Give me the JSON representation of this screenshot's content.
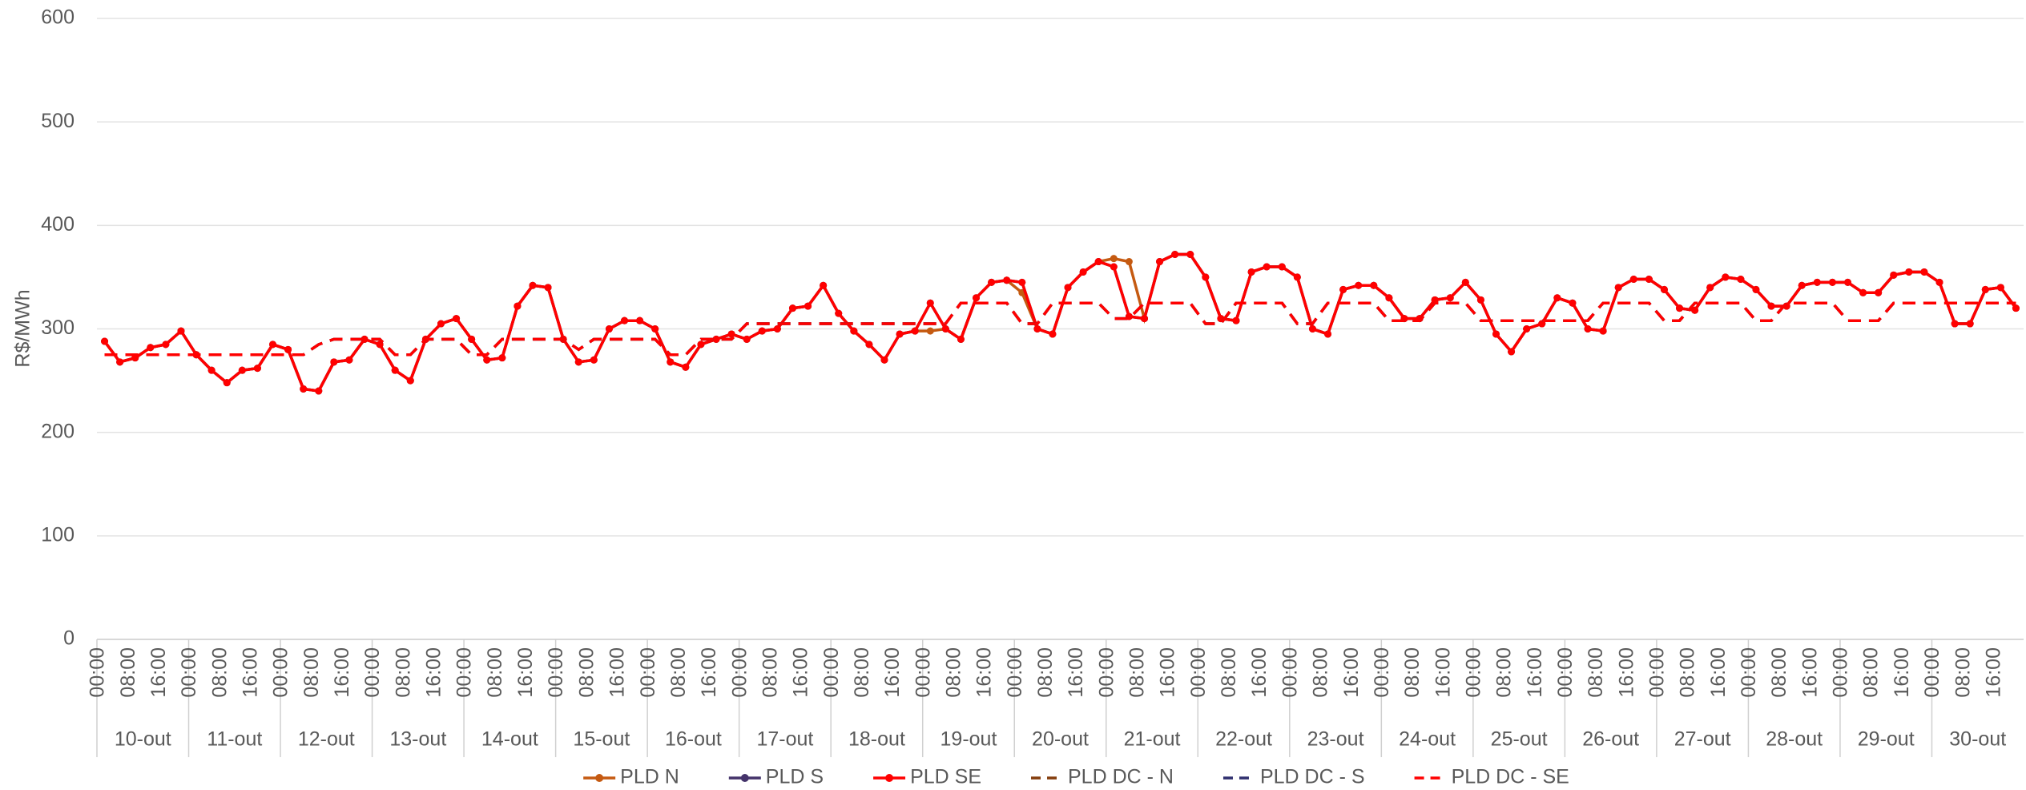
{
  "chart_data": {
    "type": "line",
    "ylabel": "R$/MWh",
    "ylim": [
      0,
      600
    ],
    "yticks": [
      0,
      100,
      200,
      300,
      400,
      500,
      600
    ],
    "grid": true,
    "legend": "bottom",
    "groups": [
      "10-out",
      "11-out",
      "12-out",
      "13-out",
      "14-out",
      "15-out",
      "16-out",
      "17-out",
      "18-out",
      "19-out",
      "20-out",
      "21-out",
      "22-out",
      "23-out",
      "24-out",
      "25-out",
      "26-out",
      "27-out",
      "28-out",
      "29-out",
      "30-out"
    ],
    "categories": [
      "00:00",
      null,
      "08:00",
      null,
      "16:00",
      null,
      "00:00",
      null,
      "08:00",
      null,
      "16:00",
      null,
      "00:00",
      null,
      "08:00",
      null,
      "16:00",
      null,
      "00:00",
      null,
      "08:00",
      null,
      "16:00",
      null,
      "00:00",
      null,
      "08:00",
      null,
      "16:00",
      null,
      "00:00",
      null,
      "08:00",
      null,
      "16:00",
      null,
      "00:00",
      null,
      "08:00",
      null,
      "16:00",
      null,
      "00:00",
      null,
      "08:00",
      null,
      "16:00",
      null,
      "00:00",
      null,
      "08:00",
      null,
      "16:00",
      null,
      "00:00",
      null,
      "08:00",
      null,
      "16:00",
      null,
      "00:00",
      null,
      "08:00",
      null,
      "16:00",
      null,
      "00:00",
      null,
      "08:00",
      null,
      "16:00",
      null,
      "00:00",
      null,
      "08:00",
      null,
      "16:00",
      null,
      "00:00",
      null,
      "08:00",
      null,
      "16:00",
      null,
      "00:00",
      null,
      "08:00",
      null,
      "16:00",
      null,
      "00:00",
      null,
      "08:00",
      null,
      "16:00",
      null,
      "00:00",
      null,
      "08:00",
      null,
      "16:00",
      null,
      "00:00",
      null,
      "08:00",
      null,
      "16:00",
      null,
      "00:00",
      null,
      "08:00",
      null,
      "16:00",
      null,
      "00:00",
      null,
      "08:00",
      null,
      "16:00",
      null,
      "00:00",
      null,
      "08:00",
      null,
      "16:00",
      null
    ],
    "series": [
      {
        "name": "PLD  N",
        "color": "#c55a11",
        "dash": false,
        "marker": true,
        "values": [
          288,
          268,
          272,
          282,
          285,
          298,
          275,
          260,
          248,
          260,
          262,
          285,
          280,
          242,
          240,
          268,
          270,
          290,
          285,
          260,
          250,
          290,
          305,
          310,
          290,
          270,
          272,
          322,
          342,
          340,
          290,
          268,
          270,
          300,
          308,
          308,
          300,
          268,
          263,
          285,
          290,
          295,
          290,
          298,
          300,
          320,
          322,
          342,
          315,
          298,
          285,
          270,
          295,
          298,
          298,
          300,
          290,
          330,
          345,
          347,
          335,
          300,
          295,
          340,
          355,
          365,
          368,
          365,
          310,
          365,
          372,
          372,
          350,
          310,
          308,
          355,
          360,
          360,
          350,
          300,
          295,
          338,
          342,
          342,
          330,
          310,
          310,
          328,
          330,
          345,
          328,
          295,
          278,
          300,
          305,
          330,
          325,
          300,
          298,
          340,
          348,
          348,
          338,
          320,
          318,
          340,
          350,
          348,
          338,
          322,
          322,
          342,
          345,
          345,
          345,
          335,
          335,
          352,
          355,
          355,
          345,
          305,
          305,
          338,
          340,
          320
        ]
      },
      {
        "name": "PLD  S",
        "color": "#44336a",
        "dash": false,
        "marker": true,
        "values": [
          288,
          268,
          272,
          282,
          285,
          298,
          275,
          260,
          248,
          260,
          262,
          285,
          280,
          242,
          240,
          268,
          270,
          290,
          285,
          260,
          250,
          290,
          305,
          310,
          290,
          270,
          272,
          322,
          342,
          340,
          290,
          268,
          270,
          300,
          308,
          308,
          300,
          268,
          263,
          285,
          290,
          295,
          290,
          298,
          300,
          320,
          322,
          342,
          315,
          298,
          285,
          270,
          295,
          298,
          325,
          300,
          290,
          330,
          345,
          347,
          345,
          300,
          295,
          340,
          355,
          365,
          360,
          312,
          310,
          365,
          372,
          372,
          350,
          310,
          308,
          355,
          360,
          360,
          350,
          300,
          295,
          338,
          342,
          342,
          330,
          310,
          310,
          328,
          330,
          345,
          328,
          295,
          278,
          300,
          305,
          330,
          325,
          300,
          298,
          340,
          348,
          348,
          338,
          320,
          318,
          340,
          350,
          348,
          338,
          322,
          322,
          342,
          345,
          345,
          345,
          335,
          335,
          352,
          355,
          355,
          345,
          305,
          305,
          338,
          340,
          320
        ]
      },
      {
        "name": "PLD  SE",
        "color": "#ff0000",
        "dash": false,
        "marker": true,
        "values": [
          288,
          268,
          272,
          282,
          285,
          298,
          275,
          260,
          248,
          260,
          262,
          285,
          280,
          242,
          240,
          268,
          270,
          290,
          285,
          260,
          250,
          290,
          305,
          310,
          290,
          270,
          272,
          322,
          342,
          340,
          290,
          268,
          270,
          300,
          308,
          308,
          300,
          268,
          263,
          285,
          290,
          295,
          290,
          298,
          300,
          320,
          322,
          342,
          315,
          298,
          285,
          270,
          295,
          298,
          325,
          300,
          290,
          330,
          345,
          347,
          345,
          300,
          295,
          340,
          355,
          365,
          360,
          312,
          310,
          365,
          372,
          372,
          350,
          310,
          308,
          355,
          360,
          360,
          350,
          300,
          295,
          338,
          342,
          342,
          330,
          310,
          310,
          328,
          330,
          345,
          328,
          295,
          278,
          300,
          305,
          330,
          325,
          300,
          298,
          340,
          348,
          348,
          338,
          320,
          318,
          340,
          350,
          348,
          338,
          322,
          322,
          342,
          345,
          345,
          345,
          335,
          335,
          352,
          355,
          355,
          345,
          305,
          305,
          338,
          340,
          320
        ]
      },
      {
        "name": "PLD DC - N",
        "color": "#843c0c",
        "dash": true,
        "marker": false,
        "values": [
          275,
          275,
          275,
          275,
          275,
          275,
          275,
          275,
          275,
          275,
          275,
          275,
          275,
          275,
          285,
          290,
          290,
          290,
          290,
          275,
          275,
          290,
          290,
          290,
          275,
          275,
          290,
          290,
          290,
          290,
          290,
          280,
          290,
          290,
          290,
          290,
          290,
          275,
          275,
          290,
          290,
          290,
          305,
          305,
          305,
          305,
          305,
          305,
          305,
          305,
          305,
          305,
          305,
          305,
          305,
          305,
          325,
          325,
          325,
          325,
          305,
          305,
          325,
          325,
          325,
          325,
          310,
          310,
          325,
          325,
          325,
          325,
          305,
          305,
          325,
          325,
          325,
          325,
          305,
          305,
          325,
          325,
          325,
          325,
          308,
          308,
          308,
          325,
          325,
          325,
          308,
          308,
          308,
          308,
          308,
          308,
          308,
          308,
          325,
          325,
          325,
          325,
          308,
          308,
          325,
          325,
          325,
          325,
          308,
          308,
          325,
          325,
          325,
          325,
          308,
          308,
          308,
          325,
          325,
          325,
          325,
          325,
          325,
          325,
          325,
          325
        ]
      },
      {
        "name": "PLD DC - S",
        "color": "#2f2f6e",
        "dash": true,
        "marker": false,
        "values": [
          275,
          275,
          275,
          275,
          275,
          275,
          275,
          275,
          275,
          275,
          275,
          275,
          275,
          275,
          285,
          290,
          290,
          290,
          290,
          275,
          275,
          290,
          290,
          290,
          275,
          275,
          290,
          290,
          290,
          290,
          290,
          280,
          290,
          290,
          290,
          290,
          290,
          275,
          275,
          290,
          290,
          290,
          305,
          305,
          305,
          305,
          305,
          305,
          305,
          305,
          305,
          305,
          305,
          305,
          305,
          305,
          325,
          325,
          325,
          325,
          305,
          305,
          325,
          325,
          325,
          325,
          310,
          310,
          325,
          325,
          325,
          325,
          305,
          305,
          325,
          325,
          325,
          325,
          305,
          305,
          325,
          325,
          325,
          325,
          308,
          308,
          308,
          325,
          325,
          325,
          308,
          308,
          308,
          308,
          308,
          308,
          308,
          308,
          325,
          325,
          325,
          325,
          308,
          308,
          325,
          325,
          325,
          325,
          308,
          308,
          325,
          325,
          325,
          325,
          308,
          308,
          308,
          325,
          325,
          325,
          325,
          325,
          325,
          325,
          325,
          325
        ]
      },
      {
        "name": "PLD DC - SE",
        "color": "#ff0000",
        "dash": true,
        "marker": false,
        "values": [
          275,
          275,
          275,
          275,
          275,
          275,
          275,
          275,
          275,
          275,
          275,
          275,
          275,
          275,
          285,
          290,
          290,
          290,
          290,
          275,
          275,
          290,
          290,
          290,
          275,
          275,
          290,
          290,
          290,
          290,
          290,
          280,
          290,
          290,
          290,
          290,
          290,
          275,
          275,
          290,
          290,
          290,
          305,
          305,
          305,
          305,
          305,
          305,
          305,
          305,
          305,
          305,
          305,
          305,
          305,
          305,
          325,
          325,
          325,
          325,
          305,
          305,
          325,
          325,
          325,
          325,
          310,
          310,
          325,
          325,
          325,
          325,
          305,
          305,
          325,
          325,
          325,
          325,
          305,
          305,
          325,
          325,
          325,
          325,
          308,
          308,
          308,
          325,
          325,
          325,
          308,
          308,
          308,
          308,
          308,
          308,
          308,
          308,
          325,
          325,
          325,
          325,
          308,
          308,
          325,
          325,
          325,
          325,
          308,
          308,
          325,
          325,
          325,
          325,
          308,
          308,
          308,
          325,
          325,
          325,
          325,
          325,
          325,
          325,
          325,
          325
        ]
      }
    ]
  }
}
